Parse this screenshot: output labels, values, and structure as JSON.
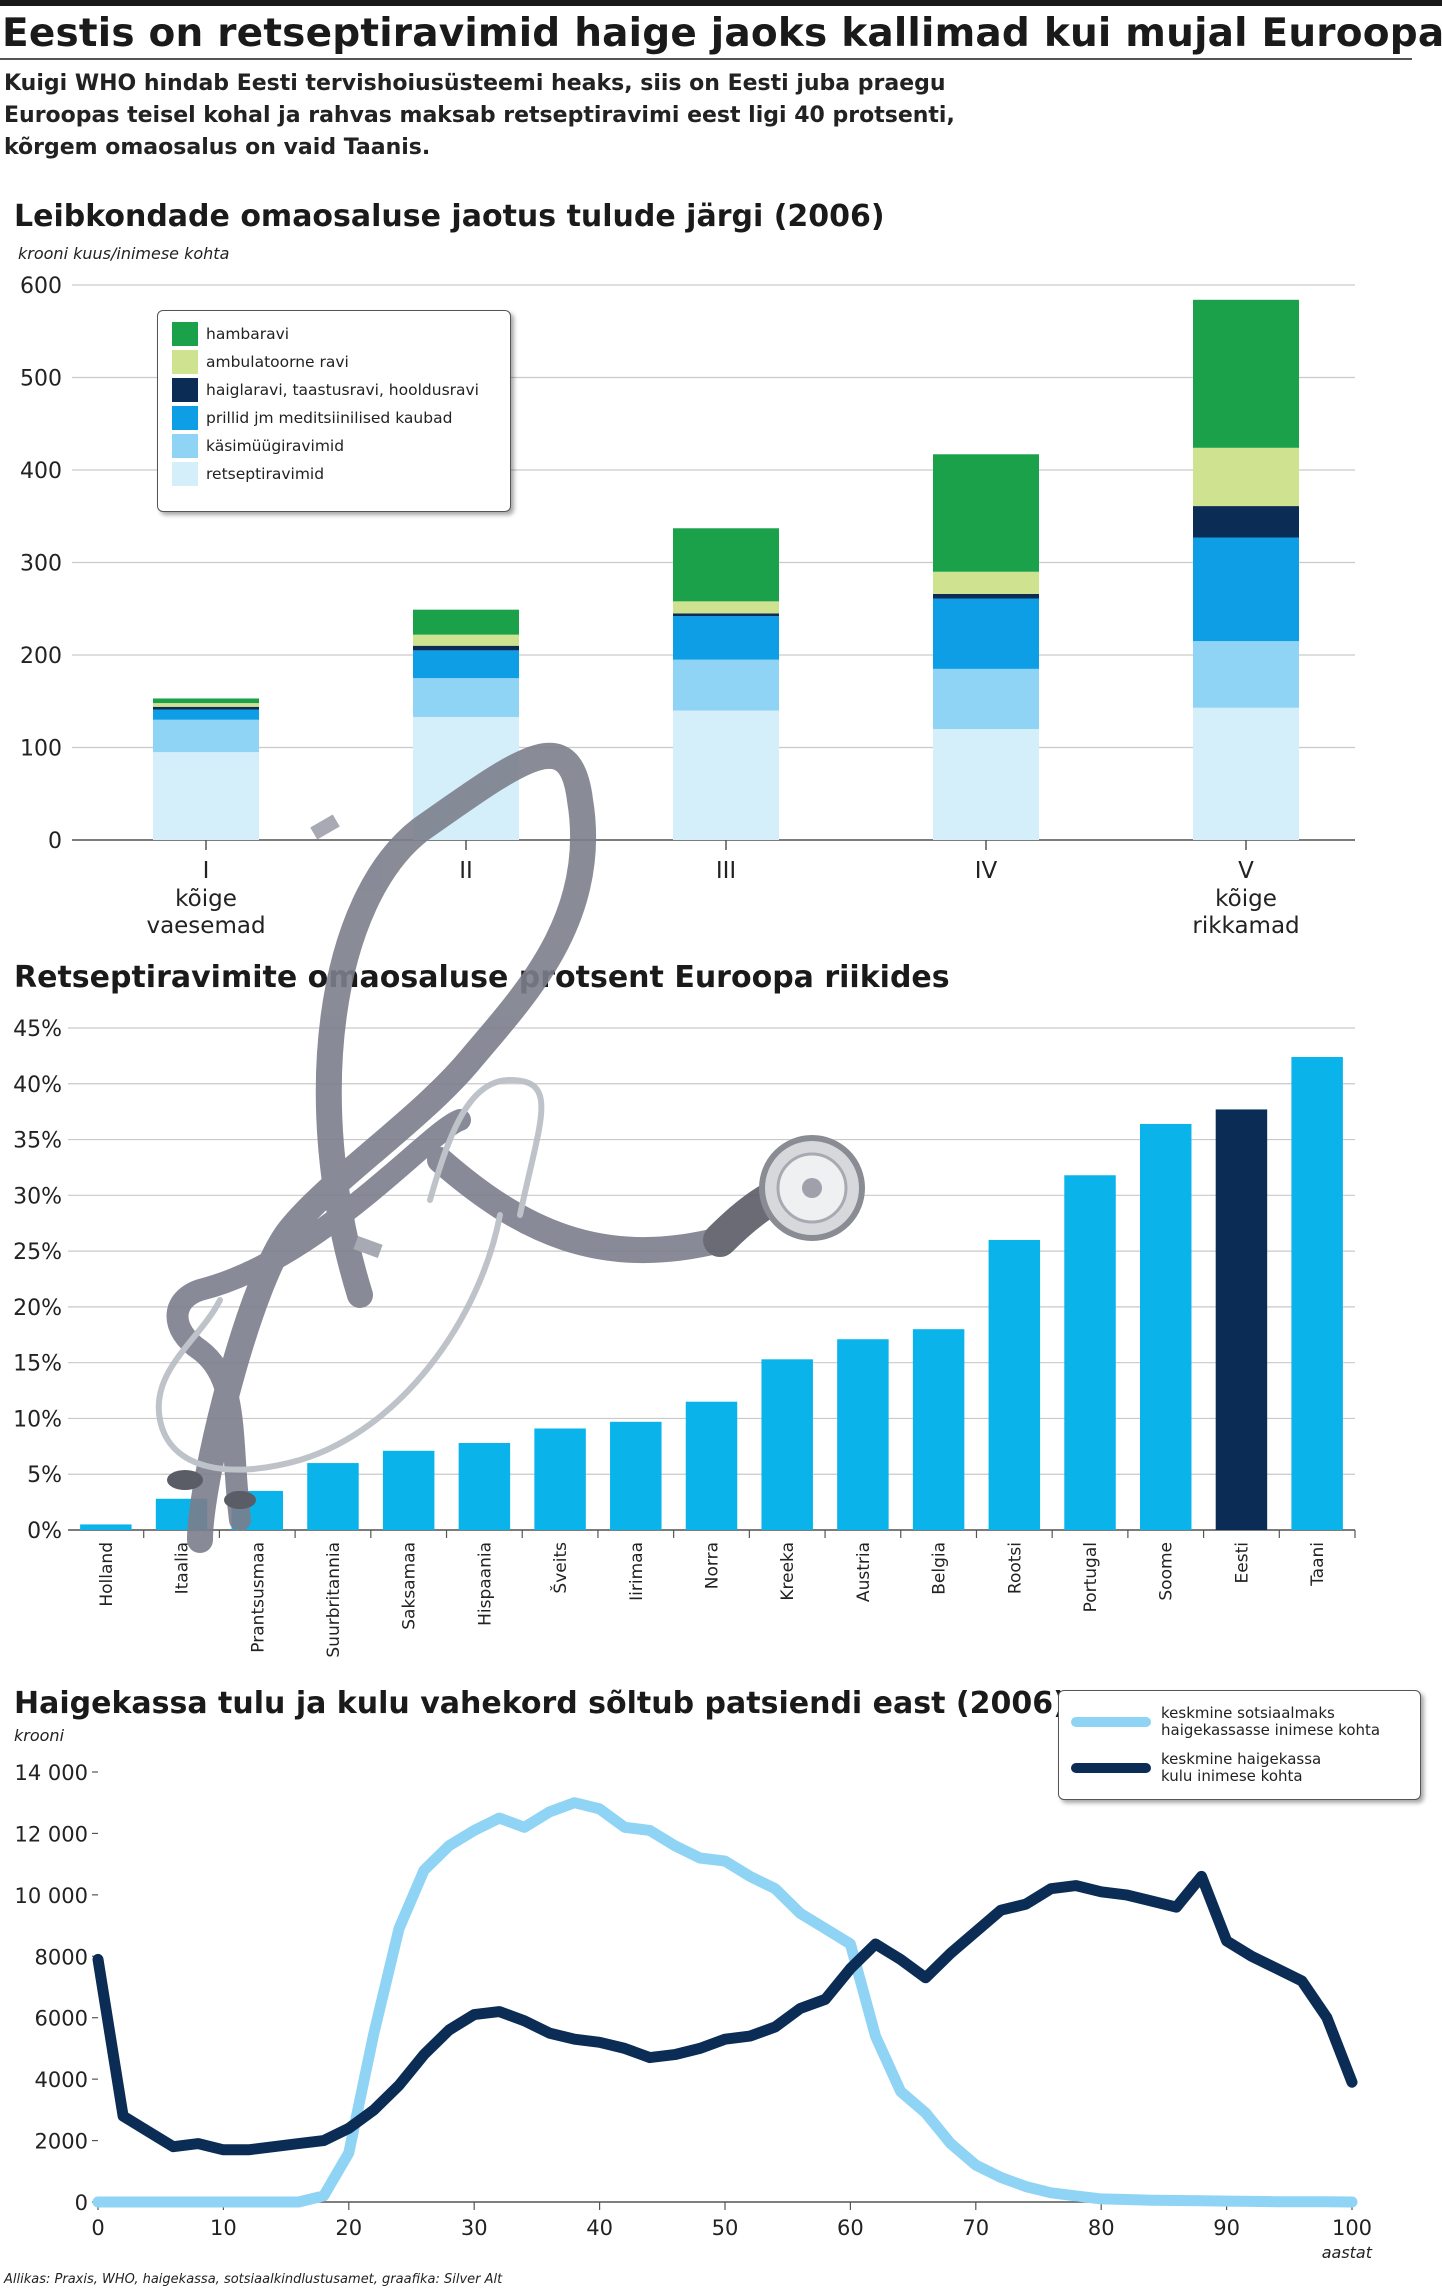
{
  "headline": "Eestis on retseptiravimid haige jaoks kallimad kui mujal  Euroopas",
  "intro": [
    "Kuigi WHO hindab Eesti tervishoiusüsteemi heaks, siis on Eesti juba praegu",
    "Euroopas teisel kohal ja rahvas maksab retseptiravimi eest ligi 40 protsenti,",
    "kõrgem omaosalus on vaid Taanis."
  ],
  "source": "Allikas: Praxis, WHO, haigekassa, sotsiaalkindlustusamet, graafika: Silver Alt",
  "decoration": "stethoscope-illustration",
  "colors": {
    "hambaravi": "#1aa14a",
    "ambulatoorne": "#cfe28f",
    "haiglaravi": "#0b2d55",
    "prillid": "#0e9ee6",
    "kasimuugi": "#8fd4f4",
    "retsepti": "#d4eefa",
    "bar_light": "#0ab4ea",
    "bar_dark": "#0b2d55",
    "line_light": "#8fd4f4",
    "line_dark": "#0b2d55"
  },
  "chart_data": [
    {
      "type": "bar",
      "stacked": true,
      "title": "Leibkondade omaosaluse jaotus tulude järgi (2006)",
      "ylabel": "krooni kuus/inimese kohta",
      "ylim": [
        0,
        600
      ],
      "yticks": [
        "0",
        "100",
        "200",
        "300",
        "400",
        "500",
        "600"
      ],
      "categories": [
        "I",
        "II",
        "III",
        "IV",
        "V"
      ],
      "category_sublabels": [
        "kõige\nvaesemad",
        "",
        "",
        "",
        "kõige\nrikkamad"
      ],
      "legend_placement": "top-left",
      "series": [
        {
          "name": "retseptiravimid",
          "values": [
            95,
            133,
            140,
            120,
            143
          ]
        },
        {
          "name": "käsimüügiravimid",
          "values": [
            35,
            42,
            55,
            65,
            72
          ]
        },
        {
          "name": "prillid jm meditsiinilised kaubad",
          "values": [
            11,
            30,
            47,
            76,
            112
          ]
        },
        {
          "name": "haiglaravi, taastusravi, hooldusravi",
          "values": [
            3,
            5,
            3,
            5,
            34
          ]
        },
        {
          "name": "ambulatoorne ravi",
          "values": [
            4,
            12,
            13,
            24,
            63
          ]
        },
        {
          "name": "hambaravi",
          "values": [
            5,
            27,
            79,
            127,
            160
          ]
        }
      ]
    },
    {
      "type": "bar",
      "title": "Retseptiravimite omaosaluse protsent Euroopa riikides",
      "ylim": [
        0,
        45
      ],
      "yticks": [
        "0%",
        "5%",
        "10%",
        "15%",
        "20%",
        "25%",
        "30%",
        "35%",
        "40%",
        "45%"
      ],
      "categories": [
        "Holland",
        "Itaalia",
        "Prantsusmaa",
        "Suurbritannia",
        "Saksamaa",
        "Hispaania",
        "Šveits",
        "Iirimaa",
        "Norra",
        "Kreeka",
        "Austria",
        "Belgia",
        "Rootsi",
        "Portugal",
        "Soome",
        "Eesti",
        "Taani"
      ],
      "values": [
        0.5,
        2.8,
        3.5,
        6.0,
        7.1,
        7.8,
        9.1,
        9.7,
        11.5,
        15.3,
        17.1,
        18.0,
        26.0,
        31.8,
        36.4,
        37.7,
        42.4
      ],
      "highlight": "Eesti"
    },
    {
      "type": "line",
      "title": "Haigekassa tulu ja kulu vahekord sõltub patsiendi east (2006)",
      "ylabel": "krooni",
      "xlabel": "aastat",
      "xlim": [
        0,
        100
      ],
      "ylim": [
        0,
        14000
      ],
      "xticks": [
        "0",
        "10",
        "20",
        "30",
        "40",
        "50",
        "60",
        "70",
        "80",
        "90",
        "100"
      ],
      "yticks": [
        "0",
        "2000",
        "4000",
        "6000",
        "8000",
        "10 000",
        "12 000",
        "14 000"
      ],
      "legend_placement": "top-right",
      "x": [
        0,
        2,
        4,
        6,
        8,
        10,
        12,
        14,
        16,
        18,
        20,
        22,
        24,
        26,
        28,
        30,
        32,
        34,
        36,
        38,
        40,
        42,
        44,
        46,
        48,
        50,
        52,
        54,
        56,
        58,
        60,
        62,
        64,
        66,
        68,
        70,
        72,
        74,
        76,
        78,
        80,
        82,
        84,
        86,
        88,
        90,
        92,
        94,
        96,
        98,
        100
      ],
      "series": [
        {
          "name": "keskmine sotsiaalmaks\nhaigekassasse inimese kohta",
          "values": [
            0,
            0,
            0,
            0,
            0,
            0,
            0,
            0,
            0,
            200,
            1600,
            5500,
            8900,
            10800,
            11600,
            12100,
            12500,
            12200,
            12700,
            13000,
            12800,
            12200,
            12100,
            11600,
            11200,
            11100,
            10600,
            10200,
            9400,
            8900,
            8400,
            5400,
            3600,
            2900,
            1900,
            1200,
            800,
            500,
            300,
            200,
            100,
            80,
            60,
            50,
            40,
            30,
            20,
            10,
            10,
            5,
            0
          ]
        },
        {
          "name": "keskmine haigekassa\nkulu inimese kohta",
          "values": [
            7900,
            2800,
            2300,
            1800,
            1900,
            1700,
            1700,
            1800,
            1900,
            2000,
            2400,
            3000,
            3800,
            4800,
            5600,
            6100,
            6200,
            5900,
            5500,
            5300,
            5200,
            5000,
            4700,
            4800,
            5000,
            5300,
            5400,
            5700,
            6300,
            6600,
            7600,
            8400,
            7900,
            7300,
            8100,
            8800,
            9500,
            9700,
            10200,
            10300,
            10100,
            10000,
            9800,
            9600,
            10600,
            8500,
            8000,
            7600,
            7200,
            6000,
            3900
          ]
        }
      ]
    }
  ]
}
